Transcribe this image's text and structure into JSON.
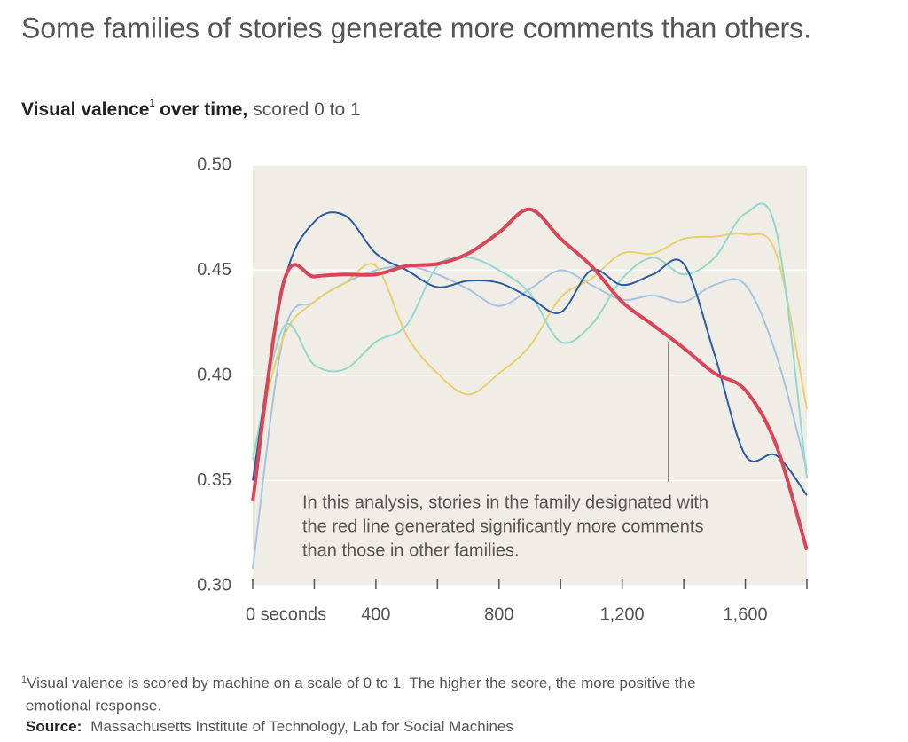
{
  "chart_data": {
    "type": "line",
    "title": "Some families of stories generate more comments than others.",
    "subtitle": {
      "label": "Visual valence",
      "footnote_mark": "1",
      "label_rest": "over time,",
      "units": "scored 0 to 1"
    },
    "x": [
      0,
      100,
      200,
      300,
      400,
      500,
      600,
      700,
      800,
      900,
      1000,
      1100,
      1200,
      1300,
      1400,
      1500,
      1600,
      1700,
      1800
    ],
    "series": [
      {
        "name": "Light blue family",
        "color": "#a6c3e2",
        "values": [
          0.308,
          0.419,
          0.435,
          0.444,
          0.45,
          0.452,
          0.448,
          0.441,
          0.433,
          0.441,
          0.45,
          0.443,
          0.436,
          0.438,
          0.435,
          0.443,
          0.443,
          0.41,
          0.355
        ]
      },
      {
        "name": "Yellow family",
        "color": "#e9d06f",
        "values": [
          0.362,
          0.418,
          0.435,
          0.444,
          0.452,
          0.419,
          0.401,
          0.391,
          0.401,
          0.414,
          0.437,
          0.446,
          0.458,
          0.458,
          0.465,
          0.466,
          0.467,
          0.458,
          0.384
        ]
      },
      {
        "name": "Teal family",
        "color": "#92d9cd",
        "values": [
          0.36,
          0.423,
          0.405,
          0.403,
          0.416,
          0.424,
          0.452,
          0.456,
          0.45,
          0.439,
          0.416,
          0.424,
          0.446,
          0.456,
          0.448,
          0.456,
          0.477,
          0.469,
          0.351
        ]
      },
      {
        "name": "Dark blue family",
        "color": "#2c5aa0",
        "values": [
          0.35,
          0.443,
          0.473,
          0.476,
          0.458,
          0.45,
          0.442,
          0.445,
          0.444,
          0.437,
          0.43,
          0.45,
          0.443,
          0.448,
          0.453,
          0.41,
          0.362,
          0.362,
          0.343
        ]
      },
      {
        "name": "Red family",
        "color": "#d8465a",
        "values": [
          0.34,
          0.444,
          0.447,
          0.448,
          0.448,
          0.452,
          0.453,
          0.458,
          0.468,
          0.479,
          0.465,
          0.452,
          0.435,
          0.424,
          0.413,
          0.401,
          0.393,
          0.367,
          0.317
        ]
      }
    ],
    "xlim": [
      0,
      1800
    ],
    "xticks": [
      {
        "value": 0,
        "label": "0 seconds"
      },
      400,
      800,
      {
        "value": 1200,
        "label": "1,200"
      },
      {
        "value": 1600,
        "label": "1,600"
      }
    ],
    "xminor_ticks": [
      200,
      600,
      1000,
      1400,
      1800
    ],
    "ylim": [
      0.3,
      0.5
    ],
    "yticks": [
      {
        "value": 0.3,
        "label": "0.30"
      },
      0.35,
      {
        "value": 0.4,
        "label": "0.40"
      },
      0.45,
      {
        "value": 0.5,
        "label": "0.50"
      }
    ],
    "grid": true,
    "annotation": {
      "x": 1350,
      "lines": [
        "In this analysis, stories in the family designated with",
        "the red line generated significantly more comments",
        "than those in other families."
      ]
    },
    "footnote": {
      "mark": "1",
      "lines": [
        "Visual valence is scored by machine on a scale of 0 to 1. The higher the score, the more positive the",
        "emotional response."
      ]
    },
    "source": {
      "label": "Source:",
      "text": "Massachusetts Institute of Technology, Lab for Social Machines"
    }
  }
}
